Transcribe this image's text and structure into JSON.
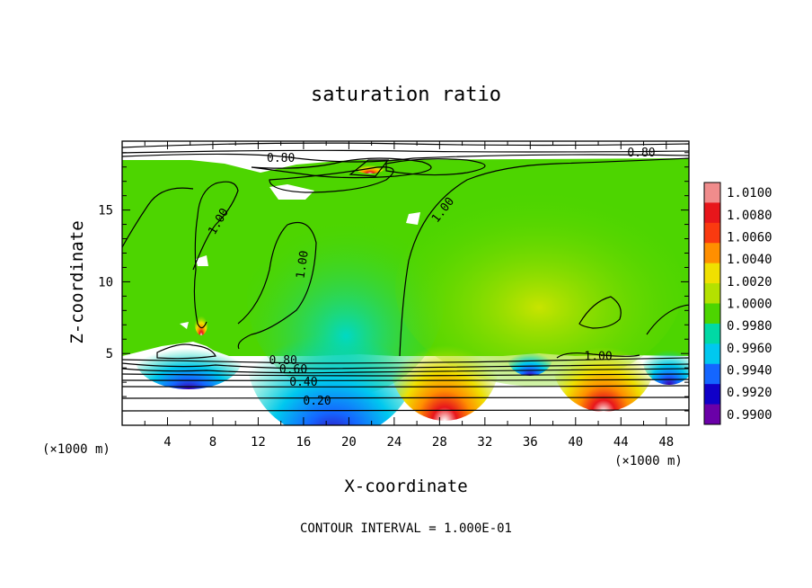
{
  "chart_data": {
    "type": "heatmap",
    "title": "saturation ratio",
    "xlabel": "X-coordinate",
    "ylabel": "Z-coordinate",
    "x_unit_note": "(×1000 m)",
    "y_unit_note": "(×1000 m)",
    "xlim": [
      0,
      50
    ],
    "ylim": [
      0,
      19.8
    ],
    "x_ticks": [
      4,
      8,
      12,
      16,
      20,
      24,
      28,
      32,
      36,
      40,
      44,
      48
    ],
    "y_ticks": [
      5,
      10,
      15
    ],
    "footer": "CONTOUR INTERVAL = 1.000E-01",
    "colorbar": {
      "levels": [
        "1.0100",
        "1.0080",
        "1.0060",
        "1.0040",
        "1.0020",
        "1.0000",
        "0.9980",
        "0.9960",
        "0.9940",
        "0.9920",
        "0.9900"
      ],
      "colors": [
        "#f08c8c",
        "#e8161b",
        "#fa3a10",
        "#ff8f00",
        "#f0e000",
        "#b4e100",
        "#4dd500",
        "#00d9a5",
        "#00c8ef",
        "#1466ff",
        "#1000c8",
        "#6a00a8"
      ]
    },
    "contour_labels": [
      {
        "text": "0.80",
        "x": 14,
        "z": 18.6
      },
      {
        "text": "0.80",
        "x": 45.8,
        "z": 19.0
      },
      {
        "text": "1.00",
        "x": 8.5,
        "z": 14.2
      },
      {
        "text": "1.00",
        "x": 15.9,
        "z": 11.2
      },
      {
        "text": "1.00",
        "x": 28.3,
        "z": 15.0
      },
      {
        "text": "1.00",
        "x": 42.0,
        "z": 4.8
      },
      {
        "text": "0.80",
        "x": 14.2,
        "z": 4.5
      },
      {
        "text": "0.60",
        "x": 15.1,
        "z": 3.9
      },
      {
        "text": "0.40",
        "x": 16.0,
        "z": 3.0
      },
      {
        "text": "0.20",
        "x": 17.2,
        "z": 1.7
      }
    ]
  }
}
